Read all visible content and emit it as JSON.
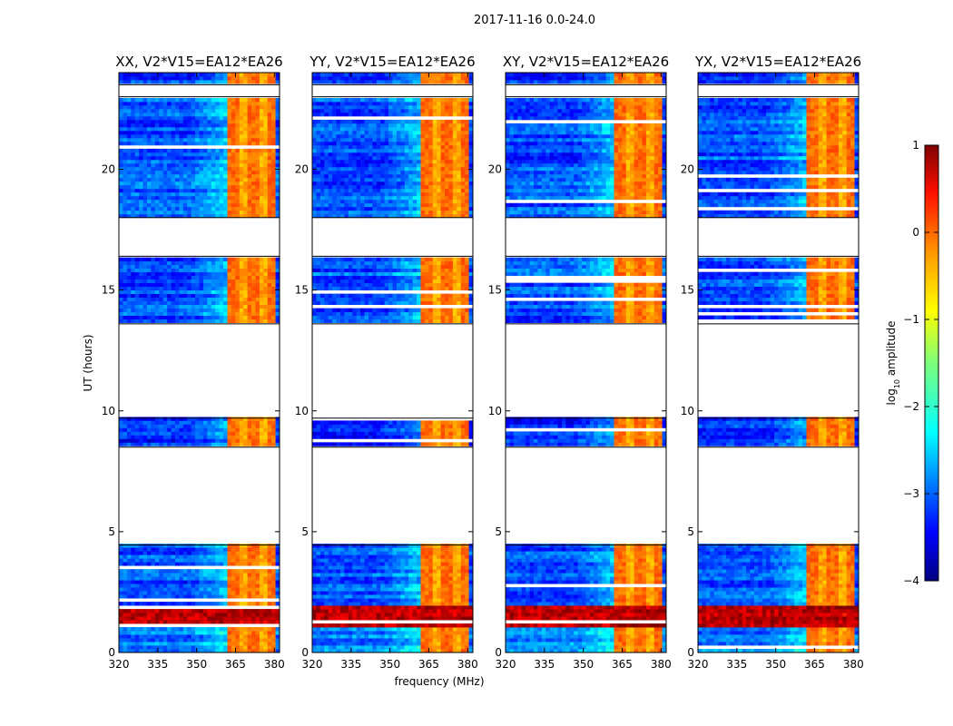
{
  "chart_data": {
    "type": "heatmap",
    "suptitle": "2017-11-16 0.0-24.0",
    "xlabel": "frequency (MHz)",
    "ylabel": "UT (hours)",
    "xlim": [
      320,
      382
    ],
    "ylim": [
      0,
      24
    ],
    "xticks": [
      320,
      335,
      350,
      365,
      380
    ],
    "yticks": [
      0,
      5,
      10,
      15,
      20
    ],
    "panels": [
      {
        "title": "XX, V2*V15=EA12*EA26"
      },
      {
        "title": "YY, V2*V15=EA12*EA26"
      },
      {
        "title": "XY, V2*V15=EA12*EA26"
      },
      {
        "title": "YX, V2*V15=EA12*EA26"
      }
    ],
    "colorbar": {
      "label": "log10 amplitude",
      "label_base": "log",
      "label_sub": "10",
      "label_rest": " amplitude",
      "min": -4,
      "max": 1,
      "ticks": [
        -4,
        -3,
        -2,
        -1,
        0,
        1
      ],
      "colormap": "jet"
    },
    "data_gaps_hours": [
      [
        4.45,
        8.5
      ],
      [
        9.7,
        13.6
      ],
      [
        16.4,
        18.0
      ],
      [
        23.0,
        23.5
      ]
    ],
    "data_blocks_hours": [
      [
        0.0,
        1.05,
        -2.8
      ],
      [
        1.05,
        2.0,
        0.7
      ],
      [
        2.0,
        4.45,
        -3.0
      ],
      [
        8.5,
        9.7,
        -3.2
      ],
      [
        13.6,
        16.4,
        -3.0
      ],
      [
        18.0,
        23.0,
        -3.0
      ],
      [
        23.5,
        24.0,
        -3.1
      ]
    ],
    "rfi_band_mhz": [
      347,
      362
    ],
    "strong_band_mhz": [
      362,
      381
    ],
    "strong_band_log_amplitude": -0.6
  }
}
